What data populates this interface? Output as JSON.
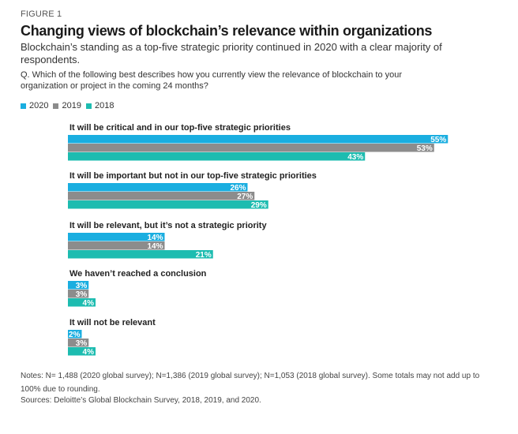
{
  "figure_label": "FIGURE 1",
  "title": "Changing views of blockchain’s relevance within organizations",
  "subtitle": "Blockchain’s standing as a top-five strategic priority continued in 2020 with a clear majority of respondents.",
  "question": "Q. Which of the following best describes how you currently view the relevance of blockchain to your organization or project in the coming 24 months?",
  "colors": {
    "s2020": "#1aaee0",
    "s2019": "#8c8c8c",
    "s2018": "#1dbcb0"
  },
  "chart_data": {
    "type": "bar",
    "orientation": "horizontal",
    "categories": [
      "It will be critical and in our top-five strategic priorities",
      "It will be important but not in our top-five strategic priorities",
      "It will be relevant, but it’s not a strategic priority",
      "We haven’t reached a conclusion",
      "It will not be relevant"
    ],
    "series": [
      {
        "name": "2020",
        "values": [
          55,
          26,
          14,
          3,
          2
        ]
      },
      {
        "name": "2019",
        "values": [
          53,
          27,
          14,
          3,
          3
        ]
      },
      {
        "name": "2018",
        "values": [
          43,
          29,
          21,
          4,
          4
        ]
      }
    ],
    "value_suffix": "%",
    "xlim": [
      0,
      100
    ],
    "grid": false,
    "legend_position": "top-left"
  },
  "notes": "Notes: N= 1,488 (2020 global survey); N=1,386 (2019 global survey); N=1,053 (2018 global survey). Some totals may not add up to 100% due to rounding.",
  "sources": "Sources: Deloitte’s Global Blockchain Survey, 2018, 2019, and 2020."
}
